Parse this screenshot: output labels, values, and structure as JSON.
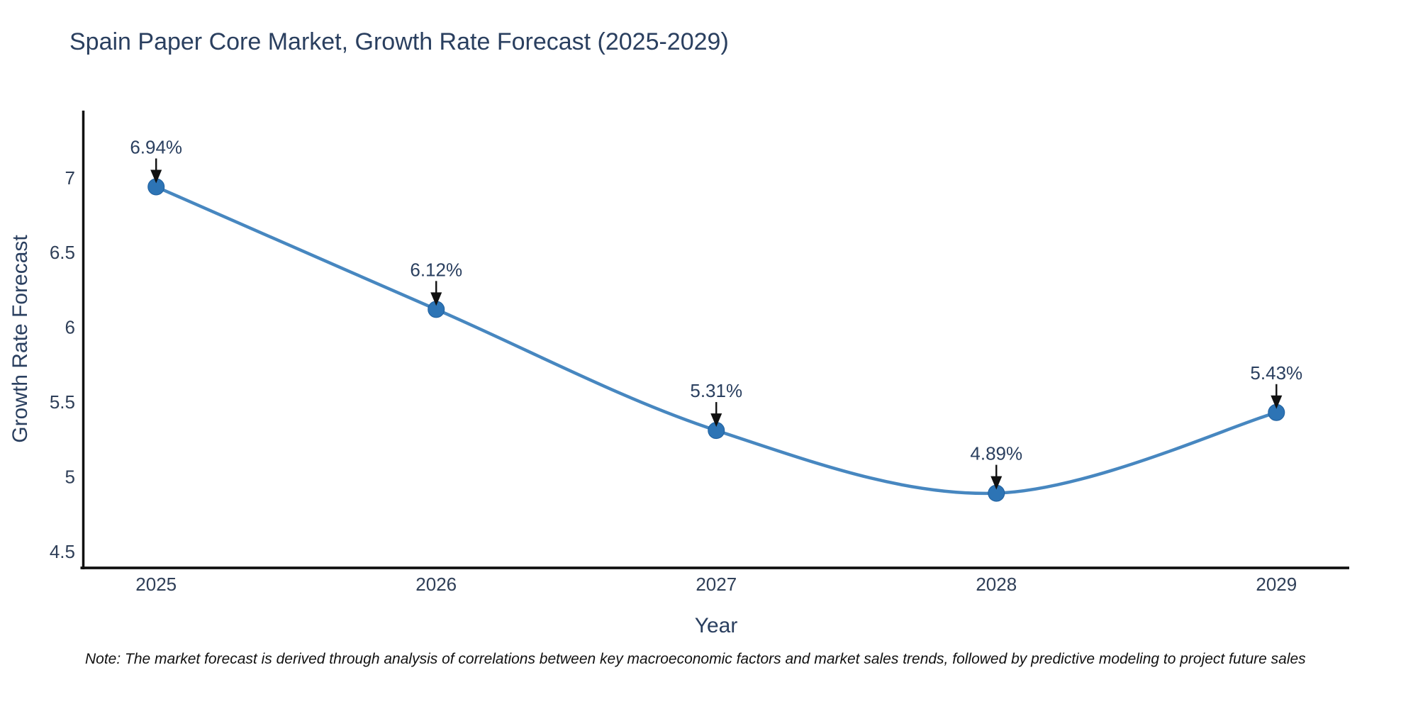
{
  "note": "Note: The market forecast is derived through analysis of correlations between key macroeconomic factors and market sales trends, followed by predictive modeling to project future sales",
  "chart_data": {
    "type": "line",
    "title": "Spain Paper Core Market, Growth Rate Forecast (2025-2029)",
    "x": [
      2025,
      2026,
      2027,
      2028,
      2029
    ],
    "series": [
      {
        "name": "Growth Rate Forecast",
        "values": [
          6.94,
          6.12,
          5.31,
          4.89,
          5.43
        ]
      }
    ],
    "point_labels": [
      "6.94%",
      "6.12%",
      "5.31%",
      "4.89%",
      "5.43%"
    ],
    "xlabel": "Year",
    "ylabel": "Growth Rate Forecast",
    "xticks": [
      2025,
      2026,
      2027,
      2028,
      2029
    ],
    "yticks": [
      4.5,
      5,
      5.5,
      6,
      6.5,
      7
    ],
    "xlim": [
      2024.74,
      2029.26
    ],
    "ylim": [
      4.39,
      7.45
    ],
    "line_shape": "spline",
    "grid": false,
    "legend": "none",
    "line_color": "#4787c0",
    "marker_color": "#2d74b5",
    "marker_edge_color": "#1f5f9e",
    "axis_color": "#111111",
    "annotation_arrow_color": "#111111"
  }
}
